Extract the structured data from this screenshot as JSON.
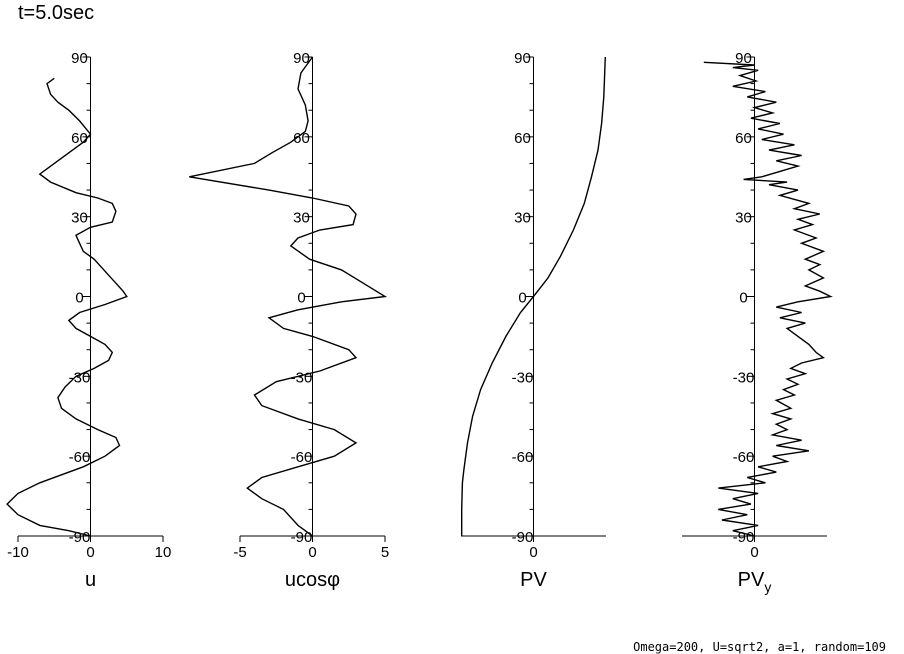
{
  "time_label": "t=5.0sec",
  "footer": "Omega=200, U=sqrt2, a=1, random=109",
  "chart_data": [
    {
      "type": "line",
      "xlabel": "u",
      "xlim": [
        -10,
        10
      ],
      "xticks": [
        -10,
        0,
        10
      ],
      "xtick_labels": [
        "-10",
        "0",
        "10"
      ],
      "ylim": [
        -90,
        90
      ],
      "yticks": [
        -90,
        -60,
        -30,
        0,
        30,
        60,
        90
      ],
      "ytick_labels": [
        "-90",
        "-60",
        "-30",
        "0",
        "30",
        "60",
        "90"
      ],
      "points": [
        [
          -5,
          82
        ],
        [
          -6,
          80
        ],
        [
          -5.5,
          76
        ],
        [
          -4.5,
          73
        ],
        [
          -3,
          70
        ],
        [
          -1.5,
          66
        ],
        [
          0,
          61
        ],
        [
          -1,
          58
        ],
        [
          -3,
          54
        ],
        [
          -5,
          50
        ],
        [
          -7,
          46
        ],
        [
          -5.5,
          43
        ],
        [
          -2,
          39
        ],
        [
          1,
          37
        ],
        [
          3,
          35
        ],
        [
          3.5,
          32
        ],
        [
          3,
          28
        ],
        [
          0,
          26
        ],
        [
          -2,
          23
        ],
        [
          -1.5,
          20
        ],
        [
          -1,
          17
        ],
        [
          0.5,
          14
        ],
        [
          1.5,
          11
        ],
        [
          2.5,
          8
        ],
        [
          3.5,
          5
        ],
        [
          4.5,
          2
        ],
        [
          5,
          0
        ],
        [
          2,
          -3
        ],
        [
          -1.5,
          -6
        ],
        [
          -3,
          -9
        ],
        [
          -2,
          -12
        ],
        [
          0,
          -15
        ],
        [
          2,
          -18
        ],
        [
          3,
          -21
        ],
        [
          2.5,
          -24
        ],
        [
          0.5,
          -27
        ],
        [
          -2,
          -30
        ],
        [
          -3.5,
          -34
        ],
        [
          -4.5,
          -38
        ],
        [
          -4,
          -42
        ],
        [
          -2,
          -46
        ],
        [
          1,
          -50
        ],
        [
          3.5,
          -53
        ],
        [
          4,
          -56
        ],
        [
          2,
          -60
        ],
        [
          -1,
          -64
        ],
        [
          -4,
          -67
        ],
        [
          -7,
          -70
        ],
        [
          -10,
          -74
        ],
        [
          -11.5,
          -78
        ],
        [
          -10,
          -82
        ],
        [
          -7,
          -86
        ],
        [
          -3,
          -88
        ],
        [
          0,
          -90
        ]
      ]
    },
    {
      "type": "line",
      "xlabel": "ucosφ",
      "xlim": [
        -5,
        5
      ],
      "xticks": [
        -5,
        0,
        5
      ],
      "xtick_labels": [
        "-5",
        "0",
        "5"
      ],
      "ylim": [
        -90,
        90
      ],
      "yticks": [
        -90,
        -60,
        -30,
        0,
        30,
        60,
        90
      ],
      "ytick_labels": [
        "-90",
        "-60",
        "-30",
        "0",
        "30",
        "60",
        "90"
      ],
      "points": [
        [
          0,
          90
        ],
        [
          -0.8,
          84
        ],
        [
          -1,
          78
        ],
        [
          -0.5,
          72
        ],
        [
          -0.3,
          66
        ],
        [
          -0.5,
          62
        ],
        [
          -1.5,
          58
        ],
        [
          -2.8,
          54
        ],
        [
          -4,
          50
        ],
        [
          -8.5,
          45
        ],
        [
          -3,
          40
        ],
        [
          0,
          37
        ],
        [
          2.5,
          34
        ],
        [
          3,
          31
        ],
        [
          2.8,
          27
        ],
        [
          0.5,
          25
        ],
        [
          -1,
          22
        ],
        [
          -1.5,
          19
        ],
        [
          -0.2,
          14
        ],
        [
          2,
          10
        ],
        [
          3.5,
          5
        ],
        [
          5,
          0
        ],
        [
          2,
          -2
        ],
        [
          -1,
          -5
        ],
        [
          -3,
          -8
        ],
        [
          -2,
          -12
        ],
        [
          0,
          -15
        ],
        [
          2.5,
          -20
        ],
        [
          3,
          -23
        ],
        [
          0.5,
          -28
        ],
        [
          -2.5,
          -32
        ],
        [
          -4,
          -37
        ],
        [
          -3.5,
          -41
        ],
        [
          -1,
          -46
        ],
        [
          1.5,
          -50
        ],
        [
          3,
          -55
        ],
        [
          1.5,
          -60
        ],
        [
          -1,
          -64
        ],
        [
          -3.5,
          -68
        ],
        [
          -4.5,
          -72
        ],
        [
          -3.5,
          -76
        ],
        [
          -2,
          -80
        ],
        [
          -1,
          -86
        ],
        [
          0,
          -90
        ]
      ]
    },
    {
      "type": "line",
      "xlabel": "PV",
      "xlim": [
        -1,
        1
      ],
      "xticks": [
        0
      ],
      "xtick_labels": [
        "0"
      ],
      "ylim": [
        -90,
        90
      ],
      "yticks": [
        -90,
        -60,
        -30,
        0,
        30,
        60,
        90
      ],
      "ytick_labels": [
        "-90",
        "-60",
        "-30",
        "0",
        "30",
        "60",
        "90"
      ],
      "points": [
        [
          -0.99,
          -90
        ],
        [
          -0.99,
          -80
        ],
        [
          -0.98,
          -70
        ],
        [
          -0.96,
          -65
        ],
        [
          -0.91,
          -55
        ],
        [
          -0.84,
          -45
        ],
        [
          -0.73,
          -35
        ],
        [
          -0.57,
          -25
        ],
        [
          -0.38,
          -15
        ],
        [
          -0.18,
          -6
        ],
        [
          0,
          0
        ],
        [
          0.2,
          7
        ],
        [
          0.37,
          15
        ],
        [
          0.55,
          25
        ],
        [
          0.7,
          35
        ],
        [
          0.8,
          45
        ],
        [
          0.89,
          55
        ],
        [
          0.94,
          65
        ],
        [
          0.97,
          75
        ],
        [
          0.98,
          82
        ],
        [
          0.99,
          90
        ]
      ]
    },
    {
      "type": "line",
      "xlabel": "PV",
      "xlabel_sub": "y",
      "xlim": [
        -1,
        1
      ],
      "xticks": [
        0
      ],
      "xtick_labels": [
        "0"
      ],
      "ylim": [
        -90,
        90
      ],
      "yticks": [
        -90,
        -60,
        -30,
        0,
        30,
        60,
        90
      ],
      "ytick_labels": [
        "-90",
        "-60",
        "-30",
        "0",
        "30",
        "60",
        "90"
      ],
      "points": [
        [
          -0.7,
          88
        ],
        [
          0,
          87
        ],
        [
          -0.3,
          86
        ],
        [
          0.05,
          85
        ],
        [
          -0.2,
          83
        ],
        [
          0.02,
          81
        ],
        [
          -0.3,
          79
        ],
        [
          0.15,
          77
        ],
        [
          -0.1,
          75
        ],
        [
          0.3,
          73
        ],
        [
          0,
          71
        ],
        [
          0.25,
          69
        ],
        [
          -0.05,
          67
        ],
        [
          0.35,
          65
        ],
        [
          0.05,
          63
        ],
        [
          0.4,
          61
        ],
        [
          0.1,
          59
        ],
        [
          0.55,
          57
        ],
        [
          0.2,
          55
        ],
        [
          0.65,
          53
        ],
        [
          0.3,
          51
        ],
        [
          0.6,
          49
        ],
        [
          0.35,
          47
        ],
        [
          0.1,
          45
        ],
        [
          -0.15,
          44
        ],
        [
          0.45,
          43
        ],
        [
          0.2,
          42
        ],
        [
          0.6,
          40
        ],
        [
          0.35,
          38
        ],
        [
          0.75,
          35
        ],
        [
          0.55,
          33
        ],
        [
          0.9,
          31
        ],
        [
          0.6,
          29
        ],
        [
          0.8,
          27
        ],
        [
          0.55,
          25
        ],
        [
          0.85,
          22
        ],
        [
          0.65,
          20
        ],
        [
          0.95,
          17
        ],
        [
          0.7,
          14
        ],
        [
          0.9,
          12
        ],
        [
          0.75,
          10
        ],
        [
          0.95,
          7
        ],
        [
          0.7,
          4
        ],
        [
          0.9,
          2
        ],
        [
          1.05,
          0
        ],
        [
          0.6,
          -2
        ],
        [
          0.3,
          -4
        ],
        [
          0.65,
          -6
        ],
        [
          0.35,
          -8
        ],
        [
          0.7,
          -10
        ],
        [
          0.45,
          -12
        ],
        [
          0.6,
          -15
        ],
        [
          0.75,
          -18
        ],
        [
          0.85,
          -21
        ],
        [
          0.95,
          -23
        ],
        [
          0.65,
          -25
        ],
        [
          0.5,
          -27
        ],
        [
          0.7,
          -29
        ],
        [
          0.45,
          -31
        ],
        [
          0.6,
          -33
        ],
        [
          0.4,
          -35
        ],
        [
          0.55,
          -37
        ],
        [
          0.3,
          -39
        ],
        [
          0.5,
          -42
        ],
        [
          0.25,
          -44
        ],
        [
          0.5,
          -46
        ],
        [
          0.3,
          -48
        ],
        [
          0.45,
          -50
        ],
        [
          0.25,
          -52
        ],
        [
          0.65,
          -54
        ],
        [
          0.3,
          -56
        ],
        [
          0.75,
          -58
        ],
        [
          0.25,
          -60
        ],
        [
          0.45,
          -62
        ],
        [
          0.05,
          -64
        ],
        [
          0.3,
          -66
        ],
        [
          -0.1,
          -68
        ],
        [
          0.15,
          -70
        ],
        [
          -0.5,
          -72
        ],
        [
          0.05,
          -74
        ],
        [
          -0.3,
          -76
        ],
        [
          -0.05,
          -78
        ],
        [
          -0.5,
          -80
        ],
        [
          -0.1,
          -82
        ],
        [
          -0.45,
          -84
        ],
        [
          0.05,
          -86
        ],
        [
          -0.3,
          -88
        ],
        [
          0,
          -90
        ]
      ]
    }
  ]
}
